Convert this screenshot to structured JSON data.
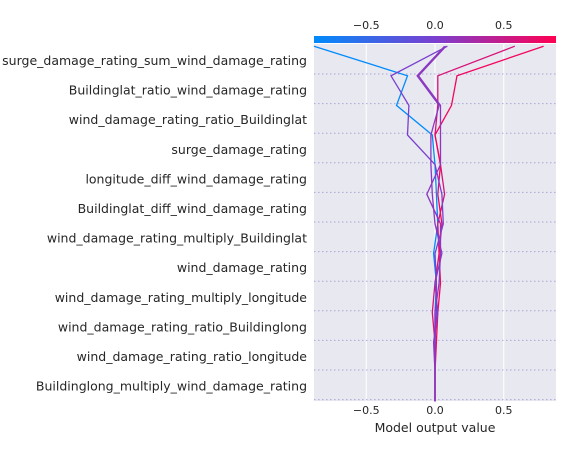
{
  "chart_data": {
    "type": "decision",
    "title": "",
    "xlabel": "Model output value",
    "ylabel": "",
    "xlim": [
      -0.88,
      0.88
    ],
    "xticks": [
      -0.5,
      0.0,
      0.5
    ],
    "xtick_labels": [
      "−0.5",
      "0.0",
      "0.5"
    ],
    "grid": true,
    "background_color": "#e8e8f0",
    "colormap": [
      "#008bfb",
      "#ff0052"
    ],
    "base_value": 0.0,
    "features": [
      "surge_damage_rating_sum_wind_damage_rating",
      "Buildinglat_ratio_wind_damage_rating",
      "wind_damage_rating_ratio_Buildinglat",
      "surge_damage_rating",
      "longitude_diff_wind_damage_rating",
      "Buildinglat_diff_wind_damage_rating",
      "wind_damage_rating_multiply_Buildinglat",
      "wind_damage_rating",
      "wind_damage_rating_multiply_longitude",
      "wind_damage_rating_ratio_Buildinglong",
      "wind_damage_rating_ratio_longitude",
      "Buildinglong_multiply_wind_damage_rating"
    ],
    "series": [
      {
        "path": [
          0.0,
          0.0,
          0.0,
          0.01,
          -0.01,
          0.02,
          0.01,
          0.0,
          -0.02,
          -0.28,
          -0.2,
          -0.88
        ]
      },
      {
        "path": [
          0.0,
          0.0,
          -0.02,
          0.0,
          0.03,
          0.02,
          0.07,
          0.04,
          0.0,
          0.02,
          0.02,
          0.58
        ]
      },
      {
        "path": [
          0.0,
          0.01,
          0.02,
          0.04,
          0.03,
          0.05,
          0.02,
          0.04,
          0.0,
          0.12,
          0.16,
          0.79
        ]
      },
      {
        "path": [
          0.0,
          0.0,
          0.01,
          0.01,
          0.0,
          0.06,
          0.05,
          0.0,
          -0.2,
          -0.19,
          -0.32,
          0.09
        ]
      },
      {
        "path": [
          0.0,
          -0.01,
          0.02,
          0.0,
          0.05,
          0.0,
          -0.02,
          -0.03,
          -0.03,
          0.03,
          -0.13,
          0.07
        ]
      },
      {
        "path": [
          0.0,
          0.0,
          0.0,
          0.03,
          0.04,
          0.04,
          -0.06,
          0.04,
          0.04,
          0.04,
          -0.12,
          0.08
        ]
      }
    ],
    "series_color_value": [
      0.0,
      0.85,
      0.95,
      0.5,
      0.55,
      0.57
    ]
  }
}
